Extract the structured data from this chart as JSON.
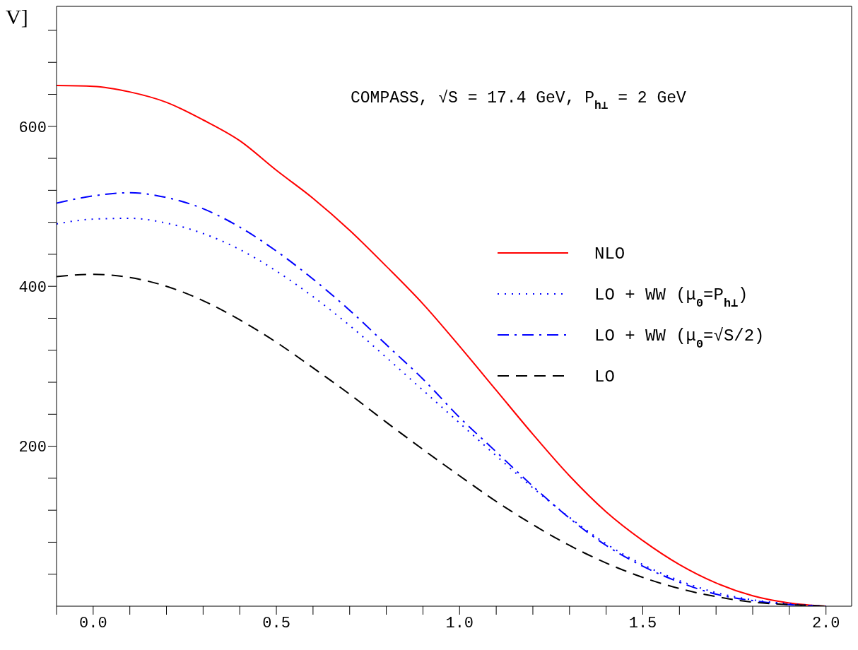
{
  "chart_data": {
    "type": "line",
    "ylabel": "V]",
    "annotations": [
      "COMPASS, √S = 17.4 GeV, P$_{h⊥}$ = 2 GeV"
    ],
    "x": [
      -0.1,
      0.0,
      0.1,
      0.2,
      0.3,
      0.4,
      0.5,
      0.6,
      0.7,
      0.8,
      0.9,
      1.0,
      1.1,
      1.2,
      1.3,
      1.4,
      1.5,
      1.6,
      1.7,
      1.8,
      1.9,
      2.0
    ],
    "series": [
      {
        "name": "NLO",
        "color": "#ff0000",
        "line_style": "solid",
        "values": [
          651,
          650,
          643,
          630,
          608,
          582,
          545,
          510,
          470,
          425,
          378,
          325,
          270,
          215,
          163,
          118,
          82,
          52,
          29,
          13,
          4,
          0
        ]
      },
      {
        "name": "LO + WW (μ$_{0}$=P$_{h⊥}$)",
        "color": "#0000ff",
        "line_style": "dotted",
        "values": [
          478,
          484,
          485,
          479,
          466,
          446,
          419,
          387,
          351,
          311,
          270,
          229,
          188,
          148,
          111,
          78,
          52,
          32,
          17,
          8,
          3,
          0
        ]
      },
      {
        "name": "LO + WW (μ$_{0}$=√S/2)",
        "color": "#0000ff",
        "line_style": "dashdot",
        "values": [
          504,
          513,
          517,
          511,
          497,
          474,
          444,
          409,
          370,
          327,
          284,
          236,
          193,
          150,
          110,
          76,
          50,
          30,
          15,
          7,
          2,
          0
        ]
      },
      {
        "name": "LO",
        "color": "#000000",
        "line_style": "dashed",
        "values": [
          412,
          415,
          411,
          400,
          382,
          358,
          330,
          298,
          265,
          230,
          196,
          163,
          131,
          102,
          76,
          54,
          36,
          22,
          12,
          5,
          2,
          0
        ]
      }
    ],
    "xlim": [
      -0.1,
      2.07
    ],
    "ylim": [
      0,
      750
    ],
    "xticks": [
      {
        "value": -0.1,
        "label": null
      },
      {
        "value": 0,
        "label": "0.0"
      },
      {
        "value": 0.1,
        "label": null
      },
      {
        "value": 0.2,
        "label": null
      },
      {
        "value": 0.3,
        "label": null
      },
      {
        "value": 0.4,
        "label": null
      },
      0.5,
      {
        "value": 0.6,
        "label": null
      },
      {
        "value": 0.7,
        "label": null
      },
      {
        "value": 0.8,
        "label": null
      },
      {
        "value": 0.9,
        "label": null
      },
      {
        "value": 1,
        "label": "1.0"
      },
      {
        "value": 1.1,
        "label": null
      },
      {
        "value": 1.2,
        "label": null
      },
      {
        "value": 1.3,
        "label": null
      },
      {
        "value": 1.4,
        "label": null
      },
      1.5,
      {
        "value": 1.6,
        "label": null
      },
      {
        "value": 1.7,
        "label": null
      },
      {
        "value": 1.8,
        "label": null
      },
      {
        "value": 1.9,
        "label": null
      },
      {
        "value": 2,
        "label": "2.0"
      }
    ],
    "yticks": [
      {
        "value": 40,
        "label": null
      },
      {
        "value": 80,
        "label": null
      },
      {
        "value": 120,
        "label": null
      },
      {
        "value": 160,
        "label": null
      },
      200,
      {
        "value": 240,
        "label": null
      },
      {
        "value": 280,
        "label": null
      },
      {
        "value": 320,
        "label": null
      },
      {
        "value": 360,
        "label": null
      },
      400,
      {
        "value": 440,
        "label": null
      },
      {
        "value": 480,
        "label": null
      },
      {
        "value": 520,
        "label": null
      },
      {
        "value": 560,
        "label": null
      },
      600,
      {
        "value": 640,
        "label": null
      },
      {
        "value": 680,
        "label": null
      },
      {
        "value": 720,
        "label": null
      }
    ],
    "grid": false,
    "legend": "right",
    "marker": "none"
  }
}
